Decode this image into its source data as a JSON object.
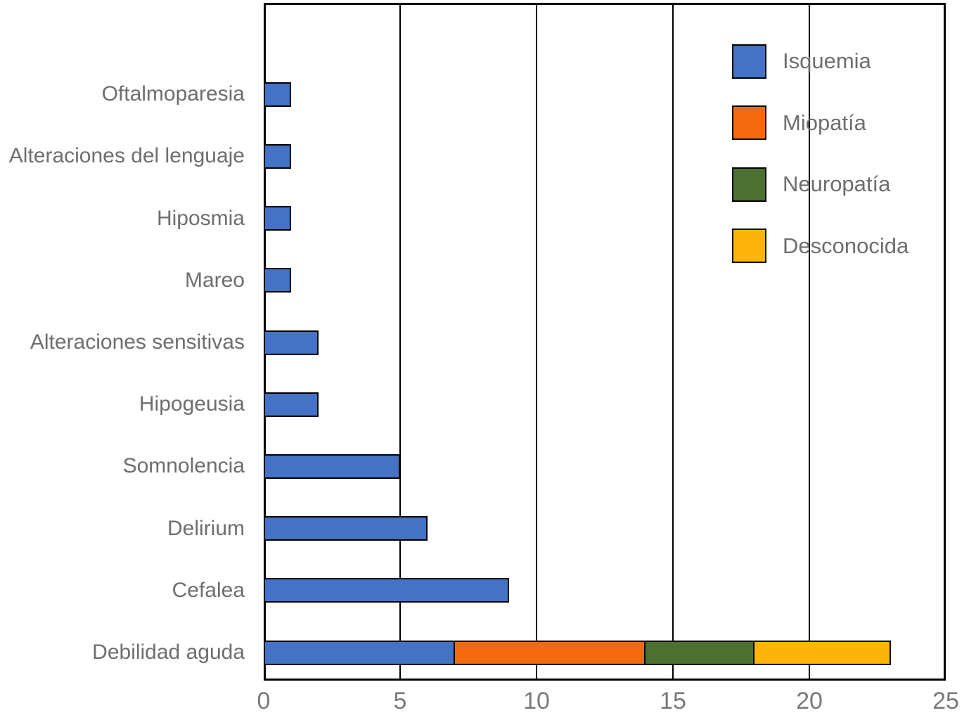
{
  "chart_data": {
    "type": "bar",
    "orientation": "horizontal",
    "stacked": true,
    "title": "",
    "xlabel": "",
    "ylabel": "",
    "xlim": [
      0,
      25
    ],
    "x_ticks": [
      0,
      5,
      10,
      15,
      20,
      25
    ],
    "grid": true,
    "legend_position": "top-right",
    "categories": [
      "Oftalmoparesia",
      "Alteraciones del lenguaje",
      "Hiposmia",
      "Mareo",
      "Alteraciones sensitivas",
      "Hipogeusia",
      "Somnolencia",
      "Delirium",
      "Cefalea",
      "Debilidad aguda"
    ],
    "series": [
      {
        "name": "Isquemia",
        "color": "#4472C4",
        "values": [
          1,
          1,
          1,
          1,
          2,
          2,
          5,
          6,
          9,
          7
        ]
      },
      {
        "name": "Miopatía",
        "color": "#F3690D",
        "values": [
          0,
          0,
          0,
          0,
          0,
          0,
          0,
          0,
          0,
          7
        ]
      },
      {
        "name": "Neuropatía",
        "color": "#4C7030",
        "values": [
          0,
          0,
          0,
          0,
          0,
          0,
          0,
          0,
          0,
          4
        ]
      },
      {
        "name": "Desconocida",
        "color": "#FFB40A",
        "values": [
          0,
          0,
          0,
          0,
          0,
          0,
          0,
          0,
          0,
          5
        ]
      }
    ]
  },
  "colors": {
    "axis_line": "#000000",
    "label_text": "#6e6e6e",
    "tick_text": "#7a7a7a",
    "background": "#ffffff"
  }
}
